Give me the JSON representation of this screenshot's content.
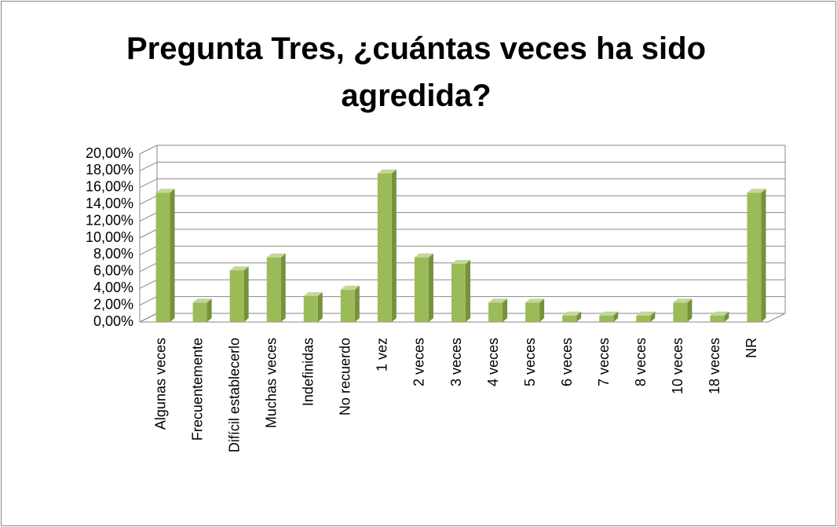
{
  "chart_data": {
    "type": "bar3d",
    "title": "Pregunta Tres, ¿cuántas veces ha sido agredida?",
    "categories": [
      "Algunas veces",
      "Frecuentemente",
      "Difícil establecerlo",
      "Muchas veces",
      "Indefinidas",
      "No recuerdo",
      "1 vez",
      "2 veces",
      "3 veces",
      "4 veces",
      "5 veces",
      "6 veces",
      "7 veces",
      "8 veces",
      "10 veces",
      "18 veces",
      "NR"
    ],
    "values": [
      15.38,
      2.31,
      6.15,
      7.69,
      3.08,
      3.85,
      17.69,
      7.69,
      6.92,
      2.31,
      2.31,
      0.77,
      0.77,
      0.77,
      2.31,
      0.77,
      15.38
    ],
    "color": "#9bbb59",
    "ylim": [
      0,
      20
    ],
    "yticks": [
      {
        "value": 0,
        "label": "0,00%"
      },
      {
        "value": 2,
        "label": "2,00%"
      },
      {
        "value": 4,
        "label": "4,00%"
      },
      {
        "value": 6,
        "label": "6,00%"
      },
      {
        "value": 8,
        "label": "8,00%"
      },
      {
        "value": 10,
        "label": "10,00%"
      },
      {
        "value": 12,
        "label": "12,00%"
      },
      {
        "value": 14,
        "label": "14,00%"
      },
      {
        "value": 16,
        "label": "16,00%"
      },
      {
        "value": 18,
        "label": "18,00%"
      },
      {
        "value": 20,
        "label": "20,00%"
      }
    ],
    "grid": true
  }
}
